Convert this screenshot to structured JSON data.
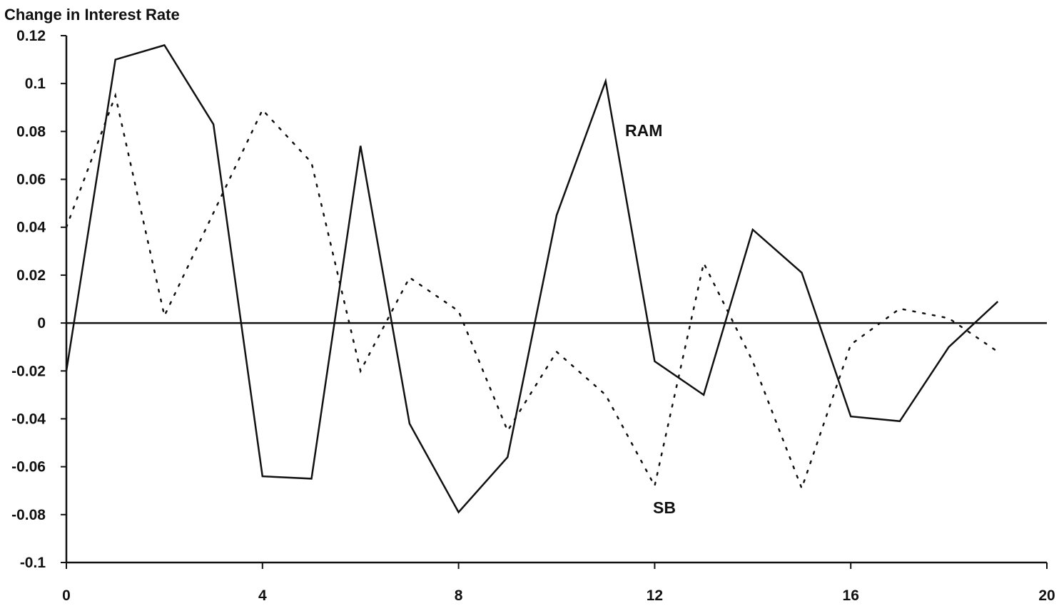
{
  "chart_data": {
    "type": "line",
    "title": "Change in Interest Rate",
    "xlim": [
      0,
      20
    ],
    "ylim": [
      -0.1,
      0.12
    ],
    "x_ticks": [
      "0",
      "4",
      "8",
      "12",
      "16",
      "20"
    ],
    "y_ticks": [
      "0.12",
      "0.1",
      "0.08",
      "0.06",
      "0.04",
      "0.02",
      "0",
      "-0.02",
      "-0.04",
      "-0.06",
      "-0.08",
      "-0.1"
    ],
    "grid": false,
    "series": [
      {
        "name": "RAM",
        "style": "solid",
        "color": "#111111",
        "x": [
          0,
          1,
          2,
          3,
          4,
          5,
          6,
          7,
          8,
          9,
          10,
          11,
          12,
          13,
          14,
          15,
          16,
          17,
          18,
          19
        ],
        "y": [
          -0.02,
          0.11,
          0.116,
          0.083,
          -0.064,
          -0.065,
          0.074,
          -0.042,
          -0.079,
          -0.056,
          0.045,
          0.101,
          -0.016,
          -0.03,
          0.039,
          0.021,
          -0.039,
          -0.041,
          -0.01,
          0.009
        ]
      },
      {
        "name": "SB",
        "style": "dotted",
        "color": "#111111",
        "x": [
          0,
          1,
          2,
          3,
          4,
          5,
          6,
          7,
          8,
          9,
          10,
          11,
          12,
          13,
          14,
          15,
          16,
          17,
          18,
          19
        ],
        "y": [
          0.04,
          0.095,
          0.003,
          0.046,
          0.089,
          0.067,
          -0.02,
          0.019,
          0.005,
          -0.045,
          -0.012,
          -0.03,
          -0.068,
          0.025,
          -0.016,
          -0.069,
          -0.009,
          0.006,
          0.002,
          -0.012
        ]
      }
    ]
  }
}
